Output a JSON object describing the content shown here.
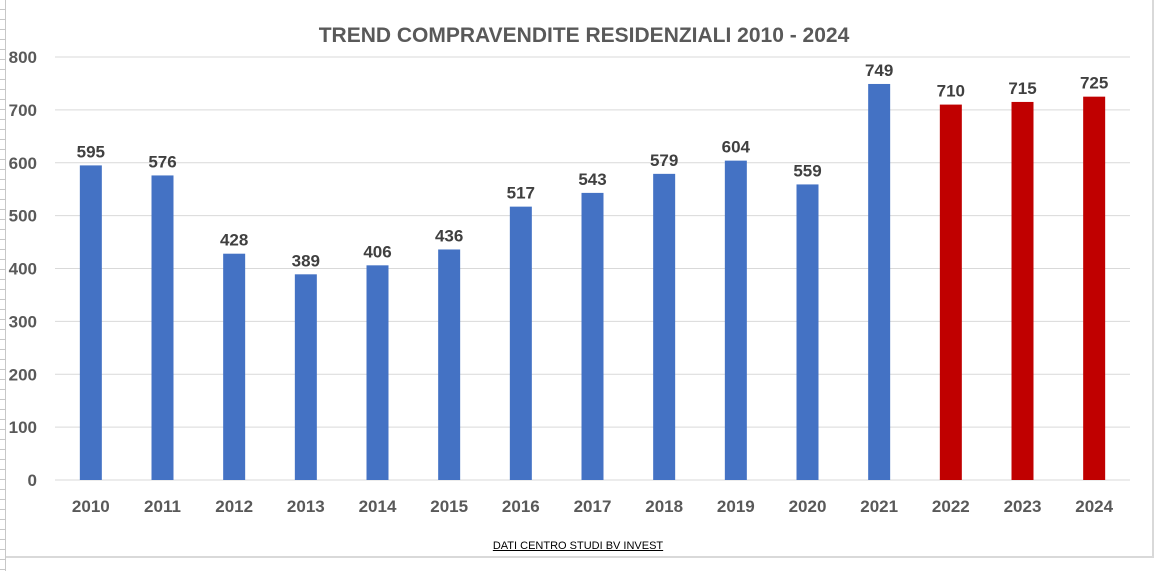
{
  "chart_data": {
    "type": "bar",
    "title": "TREND COMPRAVENDITE RESIDENZIALI 2010 - 2024",
    "categories": [
      "2010",
      "2011",
      "2012",
      "2013",
      "2014",
      "2015",
      "2016",
      "2017",
      "2018",
      "2019",
      "2020",
      "2021",
      "2022",
      "2023",
      "2024"
    ],
    "values": [
      595,
      576,
      428,
      389,
      406,
      436,
      517,
      543,
      579,
      604,
      559,
      749,
      710,
      715,
      725
    ],
    "bar_colors": [
      "#4472c4",
      "#4472c4",
      "#4472c4",
      "#4472c4",
      "#4472c4",
      "#4472c4",
      "#4472c4",
      "#4472c4",
      "#4472c4",
      "#4472c4",
      "#4472c4",
      "#4472c4",
      "#c00000",
      "#c00000",
      "#c00000"
    ],
    "yticks": [
      0,
      100,
      200,
      300,
      400,
      500,
      600,
      700,
      800
    ],
    "ylim": [
      0,
      800
    ],
    "xlabel": "",
    "ylabel": "",
    "grid": true,
    "data_labels": true
  },
  "source_note": "DATI CENTRO STUDI BV INVEST",
  "colors": {
    "series_blue": "#4472c4",
    "series_red": "#c00000",
    "gridline": "#d9d9d9",
    "text": "#595959"
  }
}
